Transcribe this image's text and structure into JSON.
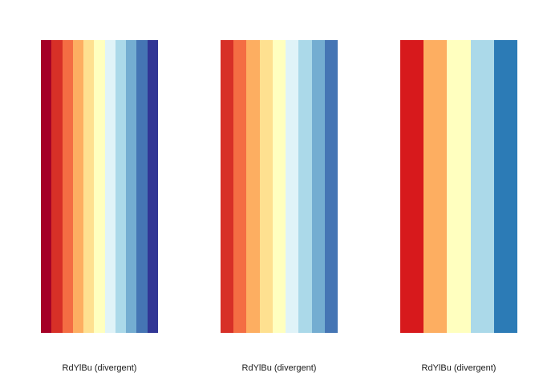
{
  "chart_data": [
    {
      "type": "heatmap",
      "xlabel": "RdYlBu (divergent)",
      "colors": [
        "#a50026",
        "#d73027",
        "#f46d43",
        "#fdae61",
        "#fee090",
        "#ffffbf",
        "#e0f3f8",
        "#abd9e9",
        "#74add1",
        "#4575b4",
        "#313695"
      ]
    },
    {
      "type": "heatmap",
      "xlabel": "RdYlBu (divergent)",
      "colors": [
        "#d73027",
        "#f46d43",
        "#fdae61",
        "#fee090",
        "#ffffbf",
        "#e0f3f8",
        "#abd9e9",
        "#74add1",
        "#4575b4"
      ]
    },
    {
      "type": "heatmap",
      "xlabel": "RdYlBu (divergent)",
      "colors": [
        "#d7191c",
        "#fdae61",
        "#ffffbf",
        "#abd9e9",
        "#2c7bb6"
      ]
    }
  ]
}
